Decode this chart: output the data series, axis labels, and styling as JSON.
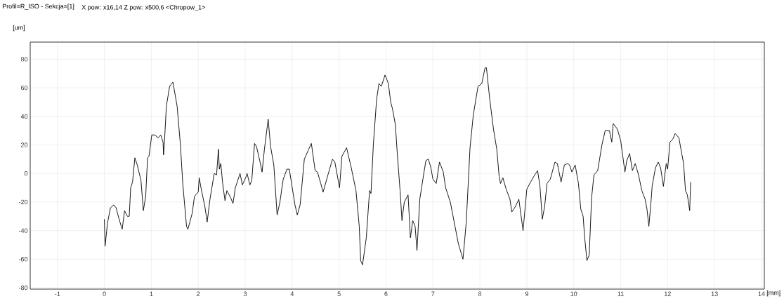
{
  "chart_data": {
    "type": "line",
    "title": "Profil=R_ISO - Sekcja=[1]",
    "subtitle": "X pow: x16,14  Z pow: x500,6 <Chropow_1>",
    "xlabel": "[mm]",
    "ylabel": "[um]",
    "x": [
      0,
      0.015,
      0.05,
      0.065,
      0.13,
      0.2,
      0.25,
      0.28,
      0.35,
      0.38,
      0.43,
      0.49,
      0.53,
      0.56,
      0.6,
      0.65,
      0.7,
      0.78,
      0.83,
      0.88,
      0.92,
      0.95,
      1.01,
      1.07,
      1.15,
      1.2,
      1.25,
      1.26,
      1.28,
      1.32,
      1.39,
      1.46,
      1.55,
      1.62,
      1.67,
      1.75,
      1.78,
      1.87,
      1.92,
      2.0,
      2.02,
      2.07,
      2.14,
      2.19,
      2.25,
      2.34,
      2.39,
      2.43,
      2.45,
      2.48,
      2.52,
      2.57,
      2.61,
      2.69,
      2.74,
      2.79,
      2.89,
      2.94,
      3.01,
      3.04,
      3.1,
      3.14,
      3.2,
      3.24,
      3.31,
      3.36,
      3.41,
      3.49,
      3.54,
      3.61,
      3.68,
      3.74,
      3.81,
      3.89,
      3.94,
      4.06,
      4.11,
      4.17,
      4.26,
      4.34,
      4.41,
      4.49,
      4.54,
      4.61,
      4.66,
      4.78,
      4.86,
      4.91,
      4.96,
      5.01,
      5.06,
      5.16,
      5.26,
      5.36,
      5.43,
      5.46,
      5.5,
      5.58,
      5.65,
      5.68,
      5.73,
      5.8,
      5.85,
      5.9,
      5.98,
      6.05,
      6.1,
      6.14,
      6.2,
      6.24,
      6.3,
      6.34,
      6.39,
      6.47,
      6.52,
      6.57,
      6.62,
      6.66,
      6.72,
      6.8,
      6.85,
      6.9,
      6.95,
      7.0,
      7.07,
      7.14,
      7.22,
      7.27,
      7.37,
      7.47,
      7.54,
      7.64,
      7.71,
      7.79,
      7.86,
      7.96,
      8.04,
      8.11,
      8.14,
      8.21,
      8.29,
      8.36,
      8.41,
      8.44,
      8.49,
      8.56,
      8.64,
      8.68,
      8.76,
      8.83,
      8.92,
      9.0,
      9.08,
      9.15,
      9.23,
      9.28,
      9.33,
      9.38,
      9.43,
      9.5,
      9.6,
      9.65,
      9.73,
      9.8,
      9.87,
      9.91,
      9.96,
      10.03,
      10.1,
      10.15,
      10.2,
      10.23,
      10.28,
      10.33,
      10.38,
      10.43,
      10.51,
      10.6,
      10.67,
      10.76,
      10.81,
      10.84,
      10.93,
      11.0,
      11.09,
      11.13,
      11.19,
      11.25,
      11.31,
      11.38,
      11.45,
      11.52,
      11.56,
      11.6,
      11.65,
      11.67,
      11.74,
      11.8,
      11.85,
      11.91,
      11.97,
      12.0,
      12.05,
      12.11,
      12.16,
      12.24,
      12.3,
      12.34,
      12.38,
      12.42,
      12.47,
      12.49
    ],
    "values": [
      -32,
      -51,
      -40,
      -35,
      -24,
      -22,
      -24,
      -28,
      -36,
      -39,
      -26,
      -30,
      -30,
      -10,
      -6,
      11,
      6,
      -5,
      -26,
      -16,
      11,
      12,
      27,
      27,
      25,
      27,
      22,
      13,
      22,
      47,
      61,
      64,
      47,
      20,
      -7,
      -37,
      -39,
      -28,
      -16,
      -13,
      -3,
      -12,
      -23,
      -34,
      -18,
      0,
      -1,
      17,
      3,
      7,
      -7,
      -19,
      -12,
      -17,
      -21,
      -10,
      0,
      -8,
      -3,
      0,
      -8,
      -5,
      21,
      19,
      9,
      1,
      17,
      38,
      19,
      6,
      -29,
      -20,
      -4,
      3,
      3,
      -22,
      -29,
      -22,
      10,
      16,
      21,
      2,
      1,
      -7,
      -13,
      1,
      10,
      8,
      -1,
      -10,
      12,
      18,
      4,
      -12,
      -37,
      -61,
      -64,
      -45,
      -12,
      -14,
      20,
      52,
      63,
      61,
      69,
      63,
      50,
      45,
      34,
      14,
      -12,
      -33,
      -20,
      -15,
      -45,
      -33,
      -37,
      -54,
      -18,
      -1,
      9,
      10,
      5,
      -4,
      -7,
      8,
      1,
      -10,
      -20,
      -37,
      -49,
      -60,
      -34,
      18,
      41,
      61,
      63,
      74,
      74,
      52,
      31,
      17,
      -2,
      -7,
      -3,
      -11,
      -18,
      -27,
      -23,
      -18,
      -40,
      -11,
      -6,
      -2,
      2,
      -9,
      -32,
      -23,
      -7,
      -4,
      8,
      7,
      -6,
      6,
      7,
      6,
      1,
      6,
      -7,
      -25,
      -30,
      -44,
      -61,
      -57,
      -17,
      -1,
      2,
      20,
      30,
      30,
      22,
      35,
      31,
      23,
      1,
      9,
      14,
      2,
      7,
      -1,
      -12,
      -18,
      -25,
      -37,
      -18,
      -9,
      4,
      8,
      4,
      -9,
      7,
      3,
      22,
      24,
      28,
      25,
      14,
      7,
      -12,
      -15,
      -26,
      -6
    ],
    "color": "#000000",
    "line_style": "solid",
    "marker": "none",
    "grid": true,
    "xlim": [
      -1.58,
      14.06
    ],
    "ylim": [
      -81,
      92
    ],
    "xticks": [
      -1,
      0,
      1,
      2,
      3,
      4,
      5,
      6,
      7,
      8,
      9,
      10,
      11,
      12,
      13,
      14
    ],
    "yticks": [
      -80,
      -60,
      -40,
      -20,
      0,
      20,
      40,
      60,
      80
    ]
  }
}
